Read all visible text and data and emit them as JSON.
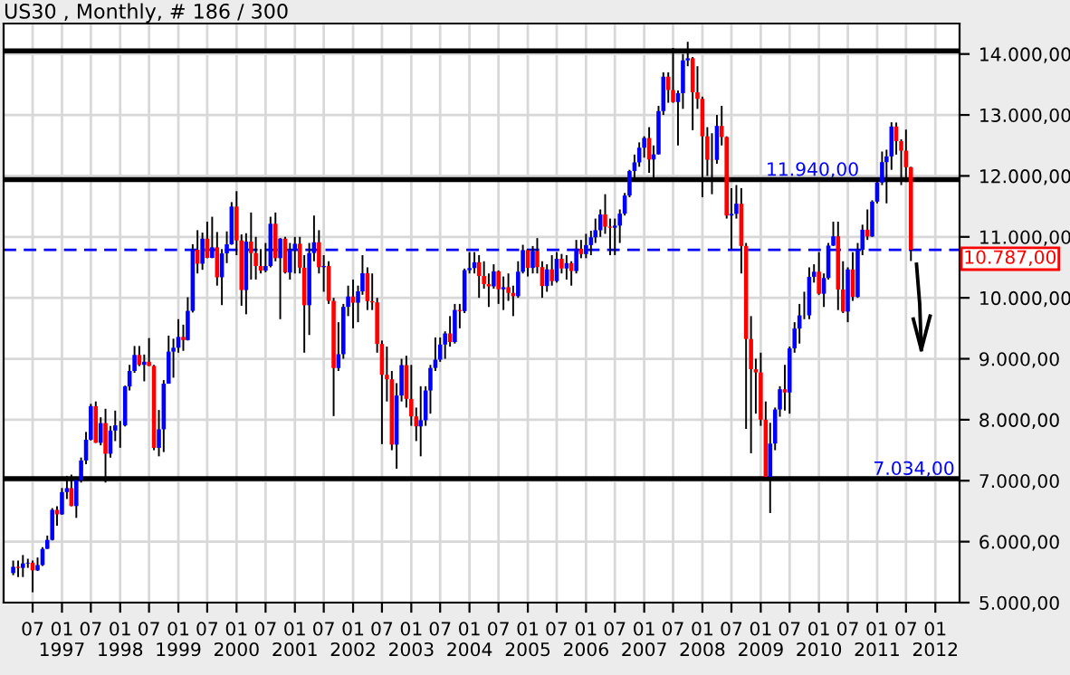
{
  "chart_data": {
    "type": "candlestick",
    "title": "US30 , Monthly, # 186 / 300",
    "x": [
      "1996-03",
      "1996-04",
      "1996-05",
      "1996-06",
      "1996-07",
      "1996-08",
      "1996-09",
      "1996-10",
      "1996-11",
      "1996-12",
      "1997-01",
      "1997-02",
      "1997-03",
      "1997-04",
      "1997-05",
      "1997-06",
      "1997-07",
      "1997-08",
      "1997-09",
      "1997-10",
      "1997-11",
      "1997-12",
      "1998-01",
      "1998-02",
      "1998-03",
      "1998-04",
      "1998-05",
      "1998-06",
      "1998-07",
      "1998-08",
      "1998-09",
      "1998-10",
      "1998-11",
      "1998-12",
      "1999-01",
      "1999-02",
      "1999-03",
      "1999-04",
      "1999-05",
      "1999-06",
      "1999-07",
      "1999-08",
      "1999-09",
      "1999-10",
      "1999-11",
      "1999-12",
      "2000-01",
      "2000-02",
      "2000-03",
      "2000-04",
      "2000-05",
      "2000-06",
      "2000-07",
      "2000-08",
      "2000-09",
      "2000-10",
      "2000-11",
      "2000-12",
      "2001-01",
      "2001-02",
      "2001-03",
      "2001-04",
      "2001-05",
      "2001-06",
      "2001-07",
      "2001-08",
      "2001-09",
      "2001-10",
      "2001-11",
      "2001-12",
      "2002-01",
      "2002-02",
      "2002-03",
      "2002-04",
      "2002-05",
      "2002-06",
      "2002-07",
      "2002-08",
      "2002-09",
      "2002-10",
      "2002-11",
      "2002-12",
      "2003-01",
      "2003-02",
      "2003-03",
      "2003-04",
      "2003-05",
      "2003-06",
      "2003-07",
      "2003-08",
      "2003-09",
      "2003-10",
      "2003-11",
      "2003-12",
      "2004-01",
      "2004-02",
      "2004-03",
      "2004-04",
      "2004-05",
      "2004-06",
      "2004-07",
      "2004-08",
      "2004-09",
      "2004-10",
      "2004-11",
      "2004-12",
      "2005-01",
      "2005-02",
      "2005-03",
      "2005-04",
      "2005-05",
      "2005-06",
      "2005-07",
      "2005-08",
      "2005-09",
      "2005-10",
      "2005-11",
      "2005-12",
      "2006-01",
      "2006-02",
      "2006-03",
      "2006-04",
      "2006-05",
      "2006-06",
      "2006-07",
      "2006-08",
      "2006-09",
      "2006-10",
      "2006-11",
      "2006-12",
      "2007-01",
      "2007-02",
      "2007-03",
      "2007-04",
      "2007-05",
      "2007-06",
      "2007-07",
      "2007-08",
      "2007-09",
      "2007-10",
      "2007-11",
      "2007-12",
      "2008-01",
      "2008-02",
      "2008-03",
      "2008-04",
      "2008-05",
      "2008-06",
      "2008-07",
      "2008-08",
      "2008-09",
      "2008-10",
      "2008-11",
      "2008-12",
      "2009-01",
      "2009-02",
      "2009-03",
      "2009-04",
      "2009-05",
      "2009-06",
      "2009-07",
      "2009-08",
      "2009-09",
      "2009-10",
      "2009-11",
      "2009-12",
      "2010-01",
      "2010-02",
      "2010-03",
      "2010-04",
      "2010-05",
      "2010-06",
      "2010-07",
      "2010-08",
      "2010-09",
      "2010-10",
      "2010-11",
      "2010-12",
      "2011-01",
      "2011-02",
      "2011-03",
      "2011-04",
      "2011-05",
      "2011-06",
      "2011-07",
      "2011-08"
    ],
    "ohlc": [
      [
        5485,
        5690,
        5450,
        5587
      ],
      [
        5587,
        5690,
        5420,
        5569
      ],
      [
        5569,
        5780,
        5420,
        5643
      ],
      [
        5643,
        5720,
        5570,
        5655
      ],
      [
        5655,
        5690,
        5170,
        5529
      ],
      [
        5529,
        5740,
        5520,
        5616
      ],
      [
        5616,
        5910,
        5600,
        5882
      ],
      [
        5882,
        6100,
        5880,
        6029
      ],
      [
        6029,
        6550,
        6020,
        6522
      ],
      [
        6522,
        6580,
        6260,
        6448
      ],
      [
        6448,
        6880,
        6440,
        6813
      ],
      [
        6813,
        7080,
        6700,
        6878
      ],
      [
        6878,
        7100,
        6580,
        6584
      ],
      [
        6584,
        7010,
        6390,
        7009
      ],
      [
        7009,
        7380,
        6970,
        7331
      ],
      [
        7331,
        7800,
        7270,
        7673
      ],
      [
        7673,
        8260,
        7660,
        8223
      ],
      [
        8223,
        8300,
        7620,
        7622
      ],
      [
        7622,
        8040,
        7580,
        7945
      ],
      [
        7945,
        8180,
        6970,
        7442
      ],
      [
        7442,
        7900,
        7380,
        7823
      ],
      [
        7823,
        8150,
        7650,
        7908
      ],
      [
        7908,
        7980,
        7540,
        7907
      ],
      [
        7907,
        8560,
        7890,
        8546
      ],
      [
        8546,
        8900,
        8480,
        8800
      ],
      [
        8800,
        9210,
        8770,
        9063
      ],
      [
        9063,
        9210,
        8880,
        8900
      ],
      [
        8900,
        9070,
        8630,
        8952
      ],
      [
        8952,
        9340,
        8880,
        8883
      ],
      [
        8883,
        8900,
        7500,
        7539
      ],
      [
        7539,
        8160,
        7400,
        7843
      ],
      [
        7843,
        8650,
        7470,
        8592
      ],
      [
        8592,
        9380,
        8590,
        9117
      ],
      [
        9117,
        9330,
        8690,
        9181
      ],
      [
        9181,
        9650,
        9100,
        9359
      ],
      [
        9359,
        9560,
        9130,
        9307
      ],
      [
        9307,
        10010,
        9300,
        9786
      ],
      [
        9786,
        10880,
        9760,
        10789
      ],
      [
        10789,
        11110,
        10400,
        10560
      ],
      [
        10560,
        11070,
        10460,
        10971
      ],
      [
        10971,
        11250,
        10650,
        10655
      ],
      [
        10655,
        11330,
        10650,
        10829
      ],
      [
        10829,
        11080,
        10200,
        10337
      ],
      [
        10337,
        10800,
        9880,
        10729
      ],
      [
        10729,
        11090,
        10570,
        10878
      ],
      [
        10878,
        11570,
        10870,
        11497
      ],
      [
        11497,
        11750,
        10700,
        10941
      ],
      [
        10941,
        11040,
        9870,
        10128
      ],
      [
        10128,
        11060,
        9730,
        10922
      ],
      [
        10922,
        11400,
        10300,
        10734
      ],
      [
        10734,
        11000,
        10300,
        10522
      ],
      [
        10522,
        10800,
        10400,
        10448
      ],
      [
        10448,
        10900,
        10420,
        10522
      ],
      [
        10522,
        11330,
        10500,
        11215
      ],
      [
        11215,
        11400,
        10600,
        10651
      ],
      [
        10651,
        10980,
        9650,
        10971
      ],
      [
        10971,
        11000,
        10400,
        10415
      ],
      [
        10415,
        10900,
        10300,
        10787
      ],
      [
        10787,
        11000,
        10400,
        10887
      ],
      [
        10887,
        11000,
        10400,
        10495
      ],
      [
        10495,
        10700,
        9100,
        9879
      ],
      [
        9879,
        10900,
        9390,
        10735
      ],
      [
        10735,
        11350,
        10600,
        10912
      ],
      [
        10912,
        11110,
        10400,
        10502
      ],
      [
        10502,
        10700,
        10100,
        10523
      ],
      [
        10523,
        10600,
        9900,
        9950
      ],
      [
        9950,
        10000,
        8060,
        8848
      ],
      [
        8848,
        9600,
        8800,
        9075
      ],
      [
        9075,
        9900,
        9000,
        9852
      ],
      [
        9852,
        10200,
        9700,
        10022
      ],
      [
        10022,
        10300,
        9500,
        9920
      ],
      [
        9920,
        10200,
        9600,
        10106
      ],
      [
        10106,
        10700,
        10050,
        10404
      ],
      [
        10404,
        10500,
        9800,
        9946
      ],
      [
        9946,
        10400,
        9800,
        9925
      ],
      [
        9925,
        10000,
        9100,
        9243
      ],
      [
        9243,
        9300,
        7600,
        8737
      ],
      [
        8737,
        9200,
        8300,
        8664
      ],
      [
        8664,
        8800,
        7500,
        7592
      ],
      [
        7592,
        8600,
        7197,
        8397
      ],
      [
        8397,
        9000,
        8300,
        8896
      ],
      [
        8896,
        9050,
        8200,
        8342
      ],
      [
        8342,
        8900,
        7900,
        8054
      ],
      [
        8054,
        8200,
        7650,
        7891
      ],
      [
        7891,
        8550,
        7400,
        7992
      ],
      [
        7992,
        8550,
        7900,
        8480
      ],
      [
        8480,
        8900,
        8100,
        8850
      ],
      [
        8850,
        9350,
        8800,
        8985
      ],
      [
        8985,
        9350,
        8950,
        9234
      ],
      [
        9234,
        9450,
        9000,
        9416
      ],
      [
        9416,
        9700,
        9200,
        9275
      ],
      [
        9275,
        9900,
        9250,
        9801
      ],
      [
        9801,
        9900,
        9500,
        9782
      ],
      [
        9782,
        10480,
        9750,
        10454
      ],
      [
        10454,
        10750,
        10400,
        10488
      ],
      [
        10488,
        10750,
        10400,
        10584
      ],
      [
        10584,
        10700,
        10000,
        10358
      ],
      [
        10358,
        10600,
        10150,
        10226
      ],
      [
        10226,
        10400,
        9850,
        10188
      ],
      [
        10188,
        10550,
        10150,
        10435
      ],
      [
        10435,
        10450,
        9900,
        10140
      ],
      [
        10140,
        10350,
        9800,
        10174
      ],
      [
        10174,
        10400,
        9950,
        10080
      ],
      [
        10080,
        10200,
        9700,
        10027
      ],
      [
        10027,
        10600,
        10000,
        10428
      ],
      [
        10428,
        10870,
        10400,
        10783
      ],
      [
        10783,
        10800,
        10350,
        10490
      ],
      [
        10490,
        10850,
        10400,
        10766
      ],
      [
        10766,
        10980,
        10400,
        10504
      ],
      [
        10504,
        10600,
        10000,
        10193
      ],
      [
        10193,
        10550,
        10100,
        10467
      ],
      [
        10467,
        10700,
        10200,
        10275
      ],
      [
        10275,
        10750,
        10250,
        10641
      ],
      [
        10641,
        10720,
        10400,
        10482
      ],
      [
        10482,
        10700,
        10300,
        10569
      ],
      [
        10569,
        10600,
        10200,
        10440
      ],
      [
        10440,
        10950,
        10400,
        10806
      ],
      [
        10806,
        10950,
        10650,
        10718
      ],
      [
        10718,
        11050,
        10650,
        10865
      ],
      [
        10865,
        11100,
        10700,
        10993
      ],
      [
        10993,
        11300,
        10900,
        11109
      ],
      [
        11109,
        11450,
        11000,
        11367
      ],
      [
        11367,
        11700,
        11050,
        11168
      ],
      [
        11168,
        11300,
        10700,
        11150
      ],
      [
        11150,
        11300,
        10700,
        11185
      ],
      [
        11185,
        11450,
        10900,
        11381
      ],
      [
        11381,
        11720,
        11350,
        11679
      ],
      [
        11679,
        12100,
        11650,
        12081
      ],
      [
        12081,
        12350,
        11950,
        12222
      ],
      [
        12222,
        12550,
        12150,
        12463
      ],
      [
        12463,
        12650,
        12300,
        12622
      ],
      [
        12622,
        12800,
        12050,
        12269
      ],
      [
        12269,
        12500,
        11950,
        12354
      ],
      [
        12354,
        13150,
        12350,
        13063
      ],
      [
        13063,
        13700,
        13000,
        13628
      ],
      [
        13628,
        13700,
        13200,
        13409
      ],
      [
        13409,
        14100,
        13200,
        13212
      ],
      [
        13212,
        13400,
        12500,
        13358
      ],
      [
        13358,
        14000,
        13100,
        13896
      ],
      [
        13896,
        14200,
        13800,
        13930
      ],
      [
        13930,
        13950,
        12750,
        13372
      ],
      [
        13372,
        13800,
        13100,
        13265
      ],
      [
        13265,
        13300,
        11650,
        12650
      ],
      [
        12650,
        12800,
        12000,
        12266
      ],
      [
        12266,
        12700,
        11700,
        12263
      ],
      [
        12263,
        13000,
        12200,
        12820
      ],
      [
        12820,
        13150,
        12500,
        12638
      ],
      [
        12638,
        12650,
        11300,
        11350
      ],
      [
        11350,
        11800,
        10800,
        11378
      ],
      [
        11378,
        11850,
        11300,
        11544
      ],
      [
        11544,
        11800,
        10400,
        10851
      ],
      [
        10851,
        10900,
        7850,
        9325
      ],
      [
        9325,
        9700,
        7450,
        8829
      ],
      [
        8829,
        9000,
        8100,
        8776
      ],
      [
        8776,
        9100,
        7900,
        8001
      ],
      [
        8001,
        8300,
        7050,
        7063
      ],
      [
        7063,
        7950,
        6470,
        7609
      ],
      [
        7609,
        8200,
        7500,
        8168
      ],
      [
        8168,
        8550,
        8050,
        8500
      ],
      [
        8500,
        8900,
        8150,
        8447
      ],
      [
        8447,
        9200,
        8100,
        9172
      ],
      [
        9172,
        9600,
        9100,
        9496
      ],
      [
        9496,
        9900,
        9250,
        9712
      ],
      [
        9712,
        10100,
        9650,
        9713
      ],
      [
        9713,
        10500,
        9650,
        10345
      ],
      [
        10345,
        10550,
        10250,
        10428
      ],
      [
        10428,
        10750,
        10050,
        10067
      ],
      [
        10067,
        10400,
        9850,
        10325
      ],
      [
        10325,
        10900,
        10300,
        10857
      ],
      [
        10857,
        11250,
        10850,
        11009
      ],
      [
        11009,
        11250,
        9800,
        10137
      ],
      [
        10137,
        10600,
        9750,
        9774
      ],
      [
        9774,
        10500,
        9600,
        10466
      ],
      [
        10466,
        10750,
        9950,
        10015
      ],
      [
        10015,
        10900,
        10000,
        10788
      ],
      [
        10788,
        11200,
        10700,
        11118
      ],
      [
        11118,
        11450,
        10950,
        11006
      ],
      [
        11006,
        11600,
        11000,
        11578
      ],
      [
        11578,
        11950,
        11550,
        11892
      ],
      [
        11892,
        12400,
        11850,
        12226
      ],
      [
        12226,
        12430,
        11550,
        12320
      ],
      [
        12320,
        12880,
        12100,
        12811
      ],
      [
        12811,
        12876,
        12350,
        12570
      ],
      [
        12570,
        12600,
        11850,
        12414
      ],
      [
        12414,
        12760,
        11900,
        12143
      ],
      [
        12143,
        12150,
        10604,
        10787
      ]
    ],
    "colors": [
      "#0000ff",
      "#ff0000",
      "#0000ff",
      "#0000ff",
      "#ff0000",
      "#0000ff",
      "#0000ff",
      "#0000ff",
      "#0000ff",
      "#ff0000",
      "#0000ff",
      "#0000ff",
      "#ff0000",
      "#0000ff",
      "#0000ff",
      "#0000ff",
      "#0000ff",
      "#ff0000",
      "#0000ff",
      "#ff0000",
      "#0000ff",
      "#0000ff",
      "#ff0000",
      "#0000ff",
      "#0000ff",
      "#0000ff",
      "#ff0000",
      "#0000ff",
      "#ff0000",
      "#ff0000",
      "#0000ff",
      "#0000ff",
      "#0000ff",
      "#0000ff",
      "#0000ff",
      "#ff0000",
      "#0000ff",
      "#0000ff",
      "#ff0000",
      "#0000ff",
      "#ff0000",
      "#0000ff",
      "#ff0000",
      "#0000ff",
      "#0000ff",
      "#0000ff",
      "#ff0000",
      "#ff0000",
      "#0000ff",
      "#ff0000",
      "#ff0000",
      "#ff0000",
      "#0000ff",
      "#0000ff",
      "#ff0000",
      "#0000ff",
      "#ff0000",
      "#0000ff",
      "#0000ff",
      "#ff0000",
      "#ff0000",
      "#0000ff",
      "#0000ff",
      "#ff0000",
      "#0000ff",
      "#ff0000",
      "#ff0000",
      "#0000ff",
      "#0000ff",
      "#0000ff",
      "#ff0000",
      "#0000ff",
      "#0000ff",
      "#ff0000",
      "#ff0000",
      "#ff0000",
      "#ff0000",
      "#ff0000",
      "#ff0000",
      "#0000ff",
      "#0000ff",
      "#ff0000",
      "#ff0000",
      "#ff0000",
      "#0000ff",
      "#0000ff",
      "#0000ff",
      "#0000ff",
      "#0000ff",
      "#0000ff",
      "#ff0000",
      "#0000ff",
      "#ff0000",
      "#0000ff",
      "#0000ff",
      "#0000ff",
      "#ff0000",
      "#ff0000",
      "#ff0000",
      "#0000ff",
      "#ff0000",
      "#0000ff",
      "#ff0000",
      "#ff0000",
      "#0000ff",
      "#0000ff",
      "#ff0000",
      "#0000ff",
      "#ff0000",
      "#ff0000",
      "#0000ff",
      "#ff0000",
      "#0000ff",
      "#ff0000",
      "#0000ff",
      "#ff0000",
      "#0000ff",
      "#ff0000",
      "#0000ff",
      "#0000ff",
      "#0000ff",
      "#0000ff",
      "#ff0000",
      "#ff0000",
      "#0000ff",
      "#0000ff",
      "#0000ff",
      "#0000ff",
      "#0000ff",
      "#0000ff",
      "#0000ff",
      "#ff0000",
      "#0000ff",
      "#0000ff",
      "#0000ff",
      "#ff0000",
      "#ff0000",
      "#0000ff",
      "#0000ff",
      "#0000ff",
      "#ff0000",
      "#ff0000",
      "#ff0000",
      "#ff0000",
      "#ff0000",
      "#0000ff",
      "#ff0000",
      "#ff0000",
      "#0000ff",
      "#0000ff",
      "#ff0000",
      "#ff0000",
      "#ff0000",
      "#ff0000",
      "#ff0000",
      "#ff0000",
      "#0000ff",
      "#0000ff",
      "#0000ff",
      "#ff0000",
      "#0000ff",
      "#0000ff",
      "#0000ff",
      "#0000ff",
      "#0000ff",
      "#0000ff",
      "#ff0000",
      "#0000ff",
      "#0000ff",
      "#0000ff",
      "#ff0000",
      "#ff0000",
      "#0000ff",
      "#ff0000",
      "#0000ff",
      "#0000ff",
      "#ff0000",
      "#0000ff",
      "#0000ff",
      "#0000ff",
      "#0000ff",
      "#0000ff",
      "#ff0000",
      "#ff0000",
      "#ff0000",
      "#ff0000"
    ],
    "xlim": [
      "1996-01",
      "2012-06"
    ],
    "xticks": [
      {
        "value": "1996-07",
        "label": "07"
      },
      {
        "value": "1997-01",
        "label": "01\n1997"
      },
      {
        "value": "1997-07",
        "label": "07"
      },
      {
        "value": "1998-01",
        "label": "01\n1998"
      },
      {
        "value": "1998-07",
        "label": "07"
      },
      {
        "value": "1999-01",
        "label": "01\n1999"
      },
      {
        "value": "1999-07",
        "label": "07"
      },
      {
        "value": "2000-01",
        "label": "01\n2000"
      },
      {
        "value": "2000-07",
        "label": "07"
      },
      {
        "value": "2001-01",
        "label": "01\n2001"
      },
      {
        "value": "2001-07",
        "label": "07"
      },
      {
        "value": "2002-01",
        "label": "01\n2002"
      },
      {
        "value": "2002-07",
        "label": "07"
      },
      {
        "value": "2003-01",
        "label": "01\n2003"
      },
      {
        "value": "2003-07",
        "label": "07"
      },
      {
        "value": "2004-01",
        "label": "01\n2004"
      },
      {
        "value": "2004-07",
        "label": "07"
      },
      {
        "value": "2005-01",
        "label": "01\n2005"
      },
      {
        "value": "2005-07",
        "label": "07"
      },
      {
        "value": "2006-01",
        "label": "01\n2006"
      },
      {
        "value": "2006-07",
        "label": "07"
      },
      {
        "value": "2007-01",
        "label": "01\n2007"
      },
      {
        "value": "2007-07",
        "label": "07"
      },
      {
        "value": "2008-01",
        "label": "01\n2008"
      },
      {
        "value": "2008-07",
        "label": "07"
      },
      {
        "value": "2009-01",
        "label": "01\n2009"
      },
      {
        "value": "2009-07",
        "label": "07"
      },
      {
        "value": "2010-01",
        "label": "01\n2010"
      },
      {
        "value": "2010-07",
        "label": "07"
      },
      {
        "value": "2011-01",
        "label": "01\n2011"
      },
      {
        "value": "2011-07",
        "label": "07"
      },
      {
        "value": "2012-01",
        "label": "01\n2012"
      }
    ],
    "ylim": [
      5000,
      14500
    ],
    "yticks": [
      {
        "value": 5000,
        "label": "5.000,00"
      },
      {
        "value": 6000,
        "label": "6.000,00"
      },
      {
        "value": 7000,
        "label": "7.000,00"
      },
      {
        "value": 8000,
        "label": "8.000,00"
      },
      {
        "value": 9000,
        "label": "9.000,00"
      },
      {
        "value": 10000,
        "label": "10.000,00"
      },
      {
        "value": 11000,
        "label": "11.000,00"
      },
      {
        "value": 12000,
        "label": "12.000,00"
      },
      {
        "value": 13000,
        "label": "13.000,00"
      },
      {
        "value": 14000,
        "label": "14.000,00"
      }
    ],
    "ref_lines": [
      {
        "axis": "y",
        "value": 14050,
        "label": null,
        "color": "#000000",
        "line_style": "solid"
      },
      {
        "axis": "y",
        "value": 11940,
        "label": "11.940,00",
        "color": "#000000",
        "line_style": "solid"
      },
      {
        "axis": "y",
        "value": 7034,
        "label": "7.034,00",
        "color": "#000000",
        "line_style": "solid"
      },
      {
        "axis": "y",
        "value": 10787,
        "label": "10.787,00",
        "color": "#0000ff",
        "line_style": "dashed"
      }
    ],
    "grid": true
  }
}
